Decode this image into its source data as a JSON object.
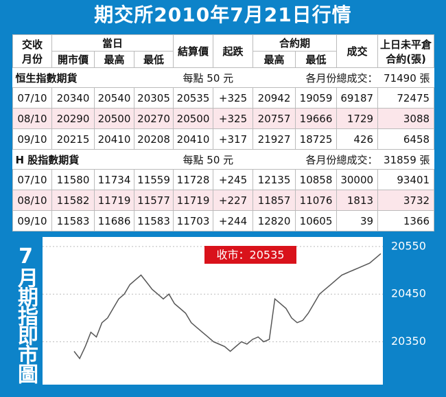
{
  "title": "期交所2010年7月21日行情",
  "table": {
    "header": {
      "month_1": "交收",
      "month_2": "月份",
      "day": "當日",
      "open": "開市價",
      "high": "最高",
      "low": "最低",
      "settle": "結算價",
      "change": "起跌",
      "contract": "合約期",
      "c_high": "最高",
      "c_low": "最低",
      "volume": "成交",
      "oi_1": "上日未平倉",
      "oi_2": "合約(張)"
    },
    "sections": [
      {
        "name": "恒生指數期貨",
        "note": "每點 50 元",
        "total_label": "各月份總成交：",
        "total": "71490 張",
        "rows": [
          [
            "07/10",
            "20340",
            "20540",
            "20305",
            "20535",
            "+325",
            "20942",
            "19059",
            "69187",
            "72475"
          ],
          [
            "08/10",
            "20290",
            "20500",
            "20270",
            "20500",
            "+325",
            "20757",
            "19666",
            "1729",
            "3088"
          ],
          [
            "09/10",
            "20215",
            "20410",
            "20208",
            "20410",
            "+317",
            "21927",
            "18725",
            "426",
            "6458"
          ]
        ]
      },
      {
        "name": "H 股指數期貨",
        "note": "每點 50 元",
        "total_label": "各月份總成交：",
        "total": "31859 張",
        "rows": [
          [
            "07/10",
            "11580",
            "11734",
            "11559",
            "11728",
            "+245",
            "12135",
            "10858",
            "30000",
            "93401"
          ],
          [
            "08/10",
            "11582",
            "11719",
            "11577",
            "11719",
            "+227",
            "11857",
            "11076",
            "1813",
            "3732"
          ],
          [
            "09/10",
            "11583",
            "11686",
            "11583",
            "11703",
            "+244",
            "12820",
            "10605",
            "39",
            "1366"
          ]
        ]
      }
    ]
  },
  "chart_data": {
    "type": "line",
    "label": "7月期指即市圖",
    "annotation": "收市：20535",
    "color": "#555555",
    "values": [
      20330,
      20315,
      20340,
      20370,
      20360,
      20390,
      20400,
      20420,
      20440,
      20450,
      20470,
      20480,
      20490,
      20475,
      20460,
      20450,
      20440,
      20450,
      20430,
      20420,
      20410,
      20390,
      20380,
      20370,
      20360,
      20350,
      20345,
      20340,
      20330,
      20340,
      20350,
      20345,
      20355,
      20360,
      20350,
      20355,
      20440,
      20430,
      20420,
      20400,
      20390,
      20395,
      20410,
      20430,
      20450,
      20460,
      20470,
      20480,
      20490,
      20495,
      20500,
      20505,
      20510,
      20515,
      20525,
      20535
    ],
    "ylim": [
      20260,
      20570
    ],
    "yticks": [
      20350,
      20450,
      20550
    ],
    "grid": true
  }
}
